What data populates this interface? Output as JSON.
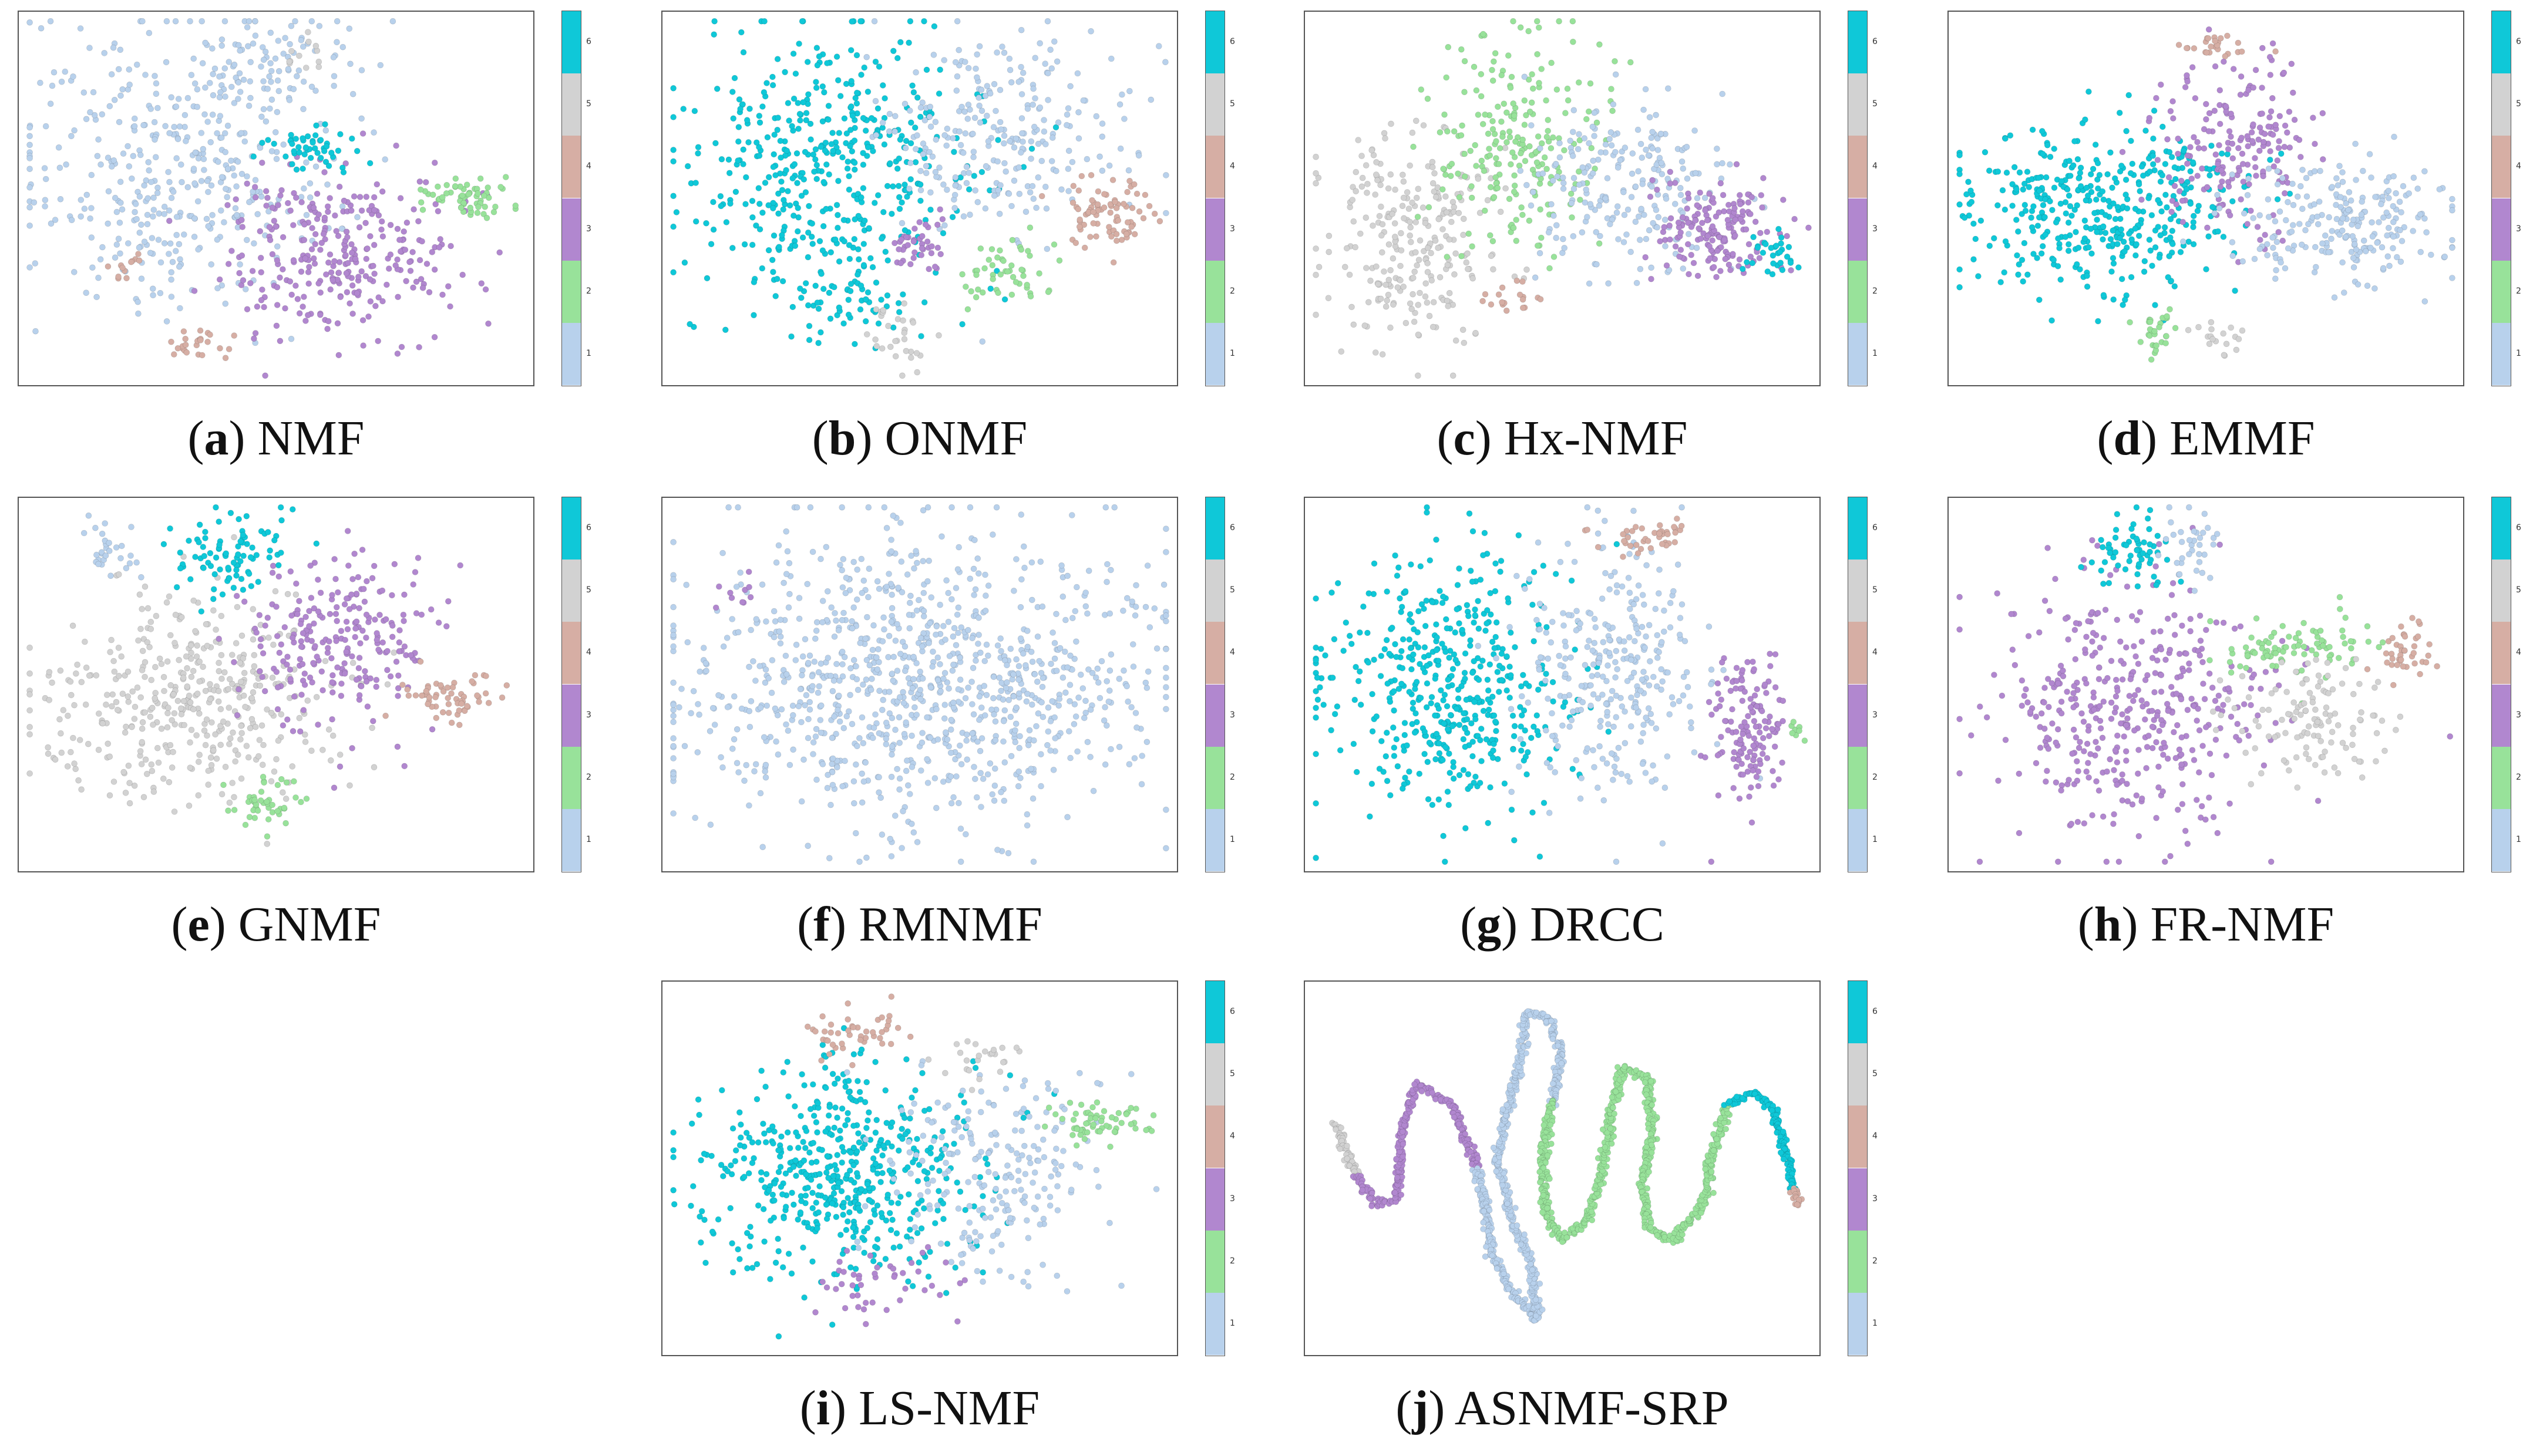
{
  "palette": {
    "1": "#b8d1ec",
    "2": "#98e29a",
    "3": "#b187cf",
    "4": "#d6aea4",
    "5": "#d2d2d2",
    "6": "#0fc8d8"
  },
  "colorbar_ticks": [
    "1",
    "2",
    "3",
    "4",
    "5",
    "6"
  ],
  "chart_data": [
    {
      "id": "a",
      "type": "scatter",
      "title": "NMF",
      "label_letter": "a",
      "xlim": [
        0,
        100
      ],
      "ylim": [
        0,
        100
      ],
      "colorbar_range": [
        1,
        6
      ],
      "clusters": [
        {
          "class": 1,
          "cx": 30,
          "cy": 60,
          "sx": 16,
          "sy": 20,
          "n": 430
        },
        {
          "class": 1,
          "cx": 50,
          "cy": 88,
          "sx": 7,
          "sy": 5,
          "n": 60
        },
        {
          "class": 3,
          "cx": 62,
          "cy": 35,
          "sx": 12,
          "sy": 12,
          "n": 300
        },
        {
          "class": 2,
          "cx": 88,
          "cy": 50,
          "sx": 4,
          "sy": 3,
          "n": 60
        },
        {
          "class": 6,
          "cx": 58,
          "cy": 63,
          "sx": 6,
          "sy": 3,
          "n": 50
        },
        {
          "class": 4,
          "cx": 35,
          "cy": 10,
          "sx": 5,
          "sy": 2,
          "n": 25
        },
        {
          "class": 4,
          "cx": 20,
          "cy": 30,
          "sx": 2,
          "sy": 2,
          "n": 12
        },
        {
          "class": 5,
          "cx": 55,
          "cy": 90,
          "sx": 3,
          "sy": 3,
          "n": 12
        }
      ]
    },
    {
      "id": "b",
      "type": "scatter",
      "title": "ONMF",
      "label_letter": "b",
      "xlim": [
        0,
        100
      ],
      "ylim": [
        0,
        100
      ],
      "colorbar_range": [
        1,
        6
      ],
      "clusters": [
        {
          "class": 6,
          "cx": 32,
          "cy": 58,
          "sx": 14,
          "sy": 20,
          "n": 470
        },
        {
          "class": 6,
          "cx": 35,
          "cy": 22,
          "sx": 6,
          "sy": 4,
          "n": 40
        },
        {
          "class": 1,
          "cx": 66,
          "cy": 68,
          "sx": 12,
          "sy": 14,
          "n": 260
        },
        {
          "class": 4,
          "cx": 87,
          "cy": 45,
          "sx": 5,
          "sy": 5,
          "n": 80
        },
        {
          "class": 2,
          "cx": 67,
          "cy": 30,
          "sx": 4,
          "sy": 5,
          "n": 50
        },
        {
          "class": 3,
          "cx": 49,
          "cy": 38,
          "sx": 3,
          "sy": 4,
          "n": 40
        },
        {
          "class": 5,
          "cx": 46,
          "cy": 12,
          "sx": 3,
          "sy": 4,
          "n": 30
        }
      ]
    },
    {
      "id": "c",
      "type": "scatter",
      "title": "Hx-NMF",
      "label_letter": "c",
      "xlim": [
        0,
        100
      ],
      "ylim": [
        0,
        100
      ],
      "colorbar_range": [
        1,
        6
      ],
      "clusters": [
        {
          "class": 5,
          "cx": 20,
          "cy": 40,
          "sx": 9,
          "sy": 15,
          "n": 260
        },
        {
          "class": 2,
          "cx": 40,
          "cy": 65,
          "sx": 8,
          "sy": 16,
          "n": 220
        },
        {
          "class": 1,
          "cx": 64,
          "cy": 55,
          "sx": 10,
          "sy": 12,
          "n": 220
        },
        {
          "class": 3,
          "cx": 80,
          "cy": 42,
          "sx": 7,
          "sy": 7,
          "n": 170
        },
        {
          "class": 6,
          "cx": 92,
          "cy": 35,
          "sx": 3,
          "sy": 3,
          "n": 30
        },
        {
          "class": 4,
          "cx": 40,
          "cy": 22,
          "sx": 3,
          "sy": 3,
          "n": 18
        }
      ]
    },
    {
      "id": "d",
      "type": "scatter",
      "title": "EMMF",
      "label_letter": "d",
      "xlim": [
        0,
        100
      ],
      "ylim": [
        0,
        100
      ],
      "colorbar_range": [
        1,
        6
      ],
      "clusters": [
        {
          "class": 6,
          "cx": 30,
          "cy": 48,
          "sx": 14,
          "sy": 12,
          "n": 420
        },
        {
          "class": 3,
          "cx": 57,
          "cy": 65,
          "sx": 8,
          "sy": 12,
          "n": 190
        },
        {
          "class": 1,
          "cx": 78,
          "cy": 42,
          "sx": 12,
          "sy": 9,
          "n": 230
        },
        {
          "class": 4,
          "cx": 50,
          "cy": 92,
          "sx": 4,
          "sy": 2,
          "n": 25
        },
        {
          "class": 2,
          "cx": 40,
          "cy": 12,
          "sx": 2,
          "sy": 4,
          "n": 30
        },
        {
          "class": 5,
          "cx": 53,
          "cy": 12,
          "sx": 3,
          "sy": 3,
          "n": 18
        }
      ]
    },
    {
      "id": "e",
      "type": "scatter",
      "title": "GNMF",
      "label_letter": "e",
      "xlim": [
        0,
        100
      ],
      "ylim": [
        0,
        100
      ],
      "colorbar_range": [
        1,
        6
      ],
      "clusters": [
        {
          "class": 5,
          "cx": 33,
          "cy": 45,
          "sx": 15,
          "sy": 14,
          "n": 420
        },
        {
          "class": 3,
          "cx": 63,
          "cy": 63,
          "sx": 9,
          "sy": 12,
          "n": 240
        },
        {
          "class": 6,
          "cx": 40,
          "cy": 85,
          "sx": 6,
          "sy": 6,
          "n": 90
        },
        {
          "class": 4,
          "cx": 85,
          "cy": 47,
          "sx": 5,
          "sy": 3,
          "n": 60
        },
        {
          "class": 2,
          "cx": 47,
          "cy": 17,
          "sx": 4,
          "sy": 4,
          "n": 45
        },
        {
          "class": 1,
          "cx": 17,
          "cy": 87,
          "sx": 3,
          "sy": 4,
          "n": 30
        }
      ]
    },
    {
      "id": "f",
      "type": "scatter",
      "title": "RMNMF",
      "label_letter": "f",
      "xlim": [
        0,
        100
      ],
      "ylim": [
        0,
        100
      ],
      "colorbar_range": [
        1,
        6
      ],
      "clusters": [
        {
          "class": 1,
          "cx": 50,
          "cy": 50,
          "sx": 24,
          "sy": 20,
          "n": 1000
        },
        {
          "class": 3,
          "cx": 14,
          "cy": 75,
          "sx": 2,
          "sy": 3,
          "n": 10
        }
      ]
    },
    {
      "id": "g",
      "type": "scatter",
      "title": "DRCC",
      "label_letter": "g",
      "xlim": [
        0,
        100
      ],
      "ylim": [
        0,
        100
      ],
      "colorbar_range": [
        1,
        6
      ],
      "clusters": [
        {
          "class": 6,
          "cx": 28,
          "cy": 50,
          "sx": 12,
          "sy": 18,
          "n": 480
        },
        {
          "class": 1,
          "cx": 60,
          "cy": 55,
          "sx": 9,
          "sy": 18,
          "n": 300
        },
        {
          "class": 3,
          "cx": 87,
          "cy": 38,
          "sx": 4,
          "sy": 10,
          "n": 140
        },
        {
          "class": 4,
          "cx": 68,
          "cy": 90,
          "sx": 5,
          "sy": 3,
          "n": 40
        },
        {
          "class": 2,
          "cx": 96,
          "cy": 38,
          "sx": 1,
          "sy": 2,
          "n": 8
        }
      ]
    },
    {
      "id": "h",
      "type": "scatter",
      "title": "FR-NMF",
      "label_letter": "h",
      "xlim": [
        0,
        100
      ],
      "ylim": [
        0,
        100
      ],
      "colorbar_range": [
        1,
        6
      ],
      "clusters": [
        {
          "class": 3,
          "cx": 35,
          "cy": 43,
          "sx": 14,
          "sy": 17,
          "n": 420
        },
        {
          "class": 6,
          "cx": 34,
          "cy": 87,
          "sx": 4,
          "sy": 5,
          "n": 60
        },
        {
          "class": 1,
          "cx": 48,
          "cy": 88,
          "sx": 4,
          "sy": 5,
          "n": 35
        },
        {
          "class": 2,
          "cx": 68,
          "cy": 60,
          "sx": 7,
          "sy": 4,
          "n": 90
        },
        {
          "class": 5,
          "cx": 72,
          "cy": 40,
          "sx": 8,
          "sy": 8,
          "n": 120
        },
        {
          "class": 4,
          "cx": 90,
          "cy": 60,
          "sx": 3,
          "sy": 4,
          "n": 40
        }
      ]
    },
    {
      "id": "i",
      "type": "scatter",
      "title": "LS-NMF",
      "label_letter": "i",
      "xlim": [
        0,
        100
      ],
      "ylim": [
        0,
        100
      ],
      "colorbar_range": [
        1,
        6
      ],
      "clusters": [
        {
          "class": 6,
          "cx": 35,
          "cy": 48,
          "sx": 13,
          "sy": 15,
          "n": 520
        },
        {
          "class": 1,
          "cx": 65,
          "cy": 48,
          "sx": 10,
          "sy": 14,
          "n": 220
        },
        {
          "class": 2,
          "cx": 86,
          "cy": 63,
          "sx": 5,
          "sy": 3,
          "n": 60
        },
        {
          "class": 4,
          "cx": 37,
          "cy": 88,
          "sx": 5,
          "sy": 4,
          "n": 45
        },
        {
          "class": 3,
          "cx": 42,
          "cy": 18,
          "sx": 6,
          "sy": 5,
          "n": 45
        },
        {
          "class": 5,
          "cx": 62,
          "cy": 80,
          "sx": 4,
          "sy": 3,
          "n": 25
        }
      ]
    },
    {
      "id": "j",
      "type": "scatter",
      "title": "ASNMF-SRP",
      "label_letter": "j",
      "xlim": [
        0,
        100
      ],
      "ylim": [
        0,
        100
      ],
      "colorbar_range": [
        1,
        6
      ],
      "curve": [
        {
          "class": 5,
          "points": [
            [
              5,
              62
            ],
            [
              9,
              48
            ]
          ]
        },
        {
          "class": 3,
          "points": [
            [
              9,
              48
            ],
            [
              13,
              40
            ],
            [
              17,
              41
            ],
            [
              18,
              60
            ],
            [
              21,
              73
            ],
            [
              28,
              68
            ],
            [
              33,
              50
            ]
          ]
        },
        {
          "class": 1,
          "points": [
            [
              33,
              50
            ],
            [
              35,
              38
            ],
            [
              36,
              26
            ],
            [
              40,
              16
            ],
            [
              45,
              8
            ],
            [
              44,
              22
            ],
            [
              40,
              36
            ],
            [
              37,
              52
            ],
            [
              39,
              66
            ],
            [
              42,
              82
            ],
            [
              43,
              93
            ],
            [
              47,
              92
            ],
            [
              50,
              82
            ],
            [
              48,
              68
            ]
          ]
        },
        {
          "class": 2,
          "points": [
            [
              48,
              68
            ],
            [
              46,
              52
            ],
            [
              47,
              36
            ],
            [
              50,
              30
            ],
            [
              55,
              36
            ],
            [
              58,
              50
            ],
            [
              60,
              66
            ],
            [
              62,
              78
            ],
            [
              67,
              75
            ],
            [
              68,
              60
            ],
            [
              66,
              45
            ],
            [
              67,
              34
            ],
            [
              72,
              30
            ],
            [
              78,
              40
            ],
            [
              80,
              55
            ],
            [
              83,
              68
            ]
          ]
        },
        {
          "class": 6,
          "points": [
            [
              83,
              68
            ],
            [
              88,
              71
            ],
            [
              92,
              66
            ],
            [
              95,
              52
            ],
            [
              96,
              44
            ]
          ]
        },
        {
          "class": 4,
          "points": [
            [
              96,
              44
            ],
            [
              97,
              40
            ]
          ]
        }
      ]
    }
  ]
}
